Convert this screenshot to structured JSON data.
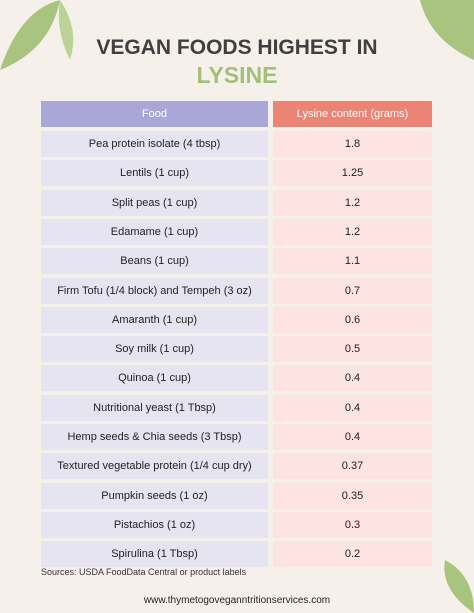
{
  "header": {
    "title": "VEGAN FOODS HIGHEST IN",
    "highlight": "LYSINE"
  },
  "table": {
    "columns": [
      "Food",
      "Lysine content (grams)"
    ],
    "rows": [
      [
        "Pea protein isolate (4 tbsp)",
        "1.8"
      ],
      [
        "Lentils (1 cup)",
        "1.25"
      ],
      [
        "Split peas (1 cup)",
        "1.2"
      ],
      [
        "Edamame (1 cup)",
        "1.2"
      ],
      [
        "Beans (1 cup)",
        "1.1"
      ],
      [
        "Firm Tofu (1/4 block) and Tempeh (3 oz)",
        "0.7"
      ],
      [
        "Amaranth (1 cup)",
        "0.6"
      ],
      [
        "Soy milk (1 cup)",
        "0.5"
      ],
      [
        "Quinoa (1 cup)",
        "0.4"
      ],
      [
        "Nutritional yeast (1 Tbsp)",
        "0.4"
      ],
      [
        "Hemp seeds & Chia seeds (3 Tbsp)",
        "0.4"
      ],
      [
        "Textured vegetable protein (1/4 cup dry)",
        "0.37"
      ],
      [
        "Pumpkin seeds (1 oz)",
        "0.35"
      ],
      [
        "Pistachios (1 oz)",
        "0.3"
      ],
      [
        "Spirulina (1 Tbsp)",
        "0.2"
      ]
    ]
  },
  "footer": {
    "source": "Sources: USDA FoodData Central or product labels",
    "website": "www.thymetogoveganntritionservices.com"
  }
}
